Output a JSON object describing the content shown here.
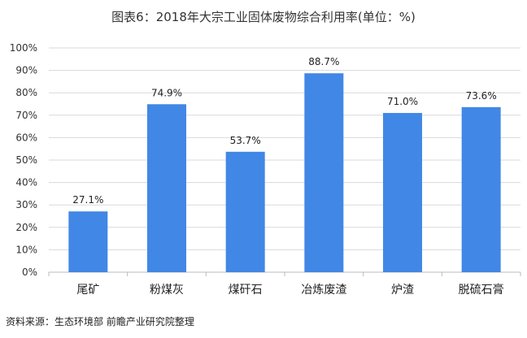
{
  "chart_data": {
    "type": "bar",
    "title": "图表6：2018年大宗工业固体废物综合利用率(单位：%)",
    "categories": [
      "尾矿",
      "粉煤灰",
      "煤矸石",
      "冶炼废渣",
      "炉渣",
      "脱硫石膏"
    ],
    "values": [
      27.1,
      74.9,
      53.7,
      88.7,
      71.0,
      73.6
    ],
    "data_labels": [
      "27.1%",
      "74.9%",
      "53.7%",
      "88.7%",
      "71.0%",
      "73.6%"
    ],
    "ylim": [
      0,
      100
    ],
    "yticks": [
      "0%",
      "10%",
      "20%",
      "30%",
      "40%",
      "50%",
      "60%",
      "70%",
      "80%",
      "90%",
      "100%"
    ],
    "xlabel": "",
    "ylabel": "",
    "grid": true,
    "bar_color": "#4187e6"
  },
  "source": "资料来源：生态环境部 前瞻产业研究院整理"
}
